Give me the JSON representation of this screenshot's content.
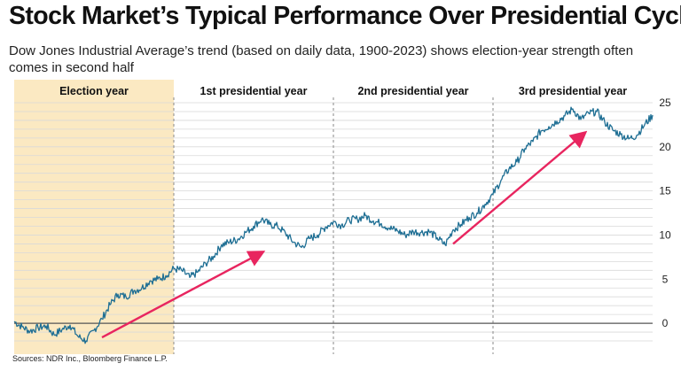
{
  "title": "Stock Market’s Typical Performance Over Presidential Cycles",
  "subtitle": "Dow Jones Industrial Average’s trend (based on daily data, 1900-2023) shows election-year strength often comes in second half",
  "source": "Sources: NDR Inc., Bloomberg Finance L.P.",
  "colors": {
    "line": "#1f6f94",
    "arrow": "#e8255f",
    "election_shade": "#fbe9c2",
    "grid": "#d9d9d9",
    "zero_line": "#555555"
  },
  "chart_data": {
    "type": "line",
    "title": "Stock Market’s Typical Performance Over Presidential Cycles",
    "xlabel": "",
    "ylabel": "",
    "ylim": [
      -2.5,
      25
    ],
    "y_ticks": [
      0,
      5,
      10,
      15,
      20,
      25
    ],
    "grid": true,
    "periods": [
      "Election year",
      "1st presidential year",
      "2nd presidential year",
      "3rd presidential year"
    ],
    "shaded_period": "Election year",
    "x_unit": "years into cycle",
    "series": [
      {
        "values": [
          [
            0.0,
            0.2
          ],
          [
            0.05,
            -0.4
          ],
          [
            0.1,
            -0.9
          ],
          [
            0.15,
            -0.5
          ],
          [
            0.2,
            -0.3
          ],
          [
            0.25,
            -1.3
          ],
          [
            0.3,
            -0.7
          ],
          [
            0.35,
            -0.2
          ],
          [
            0.4,
            -1.5
          ],
          [
            0.45,
            -2.0
          ],
          [
            0.5,
            -0.8
          ],
          [
            0.55,
            0.5
          ],
          [
            0.6,
            2.1
          ],
          [
            0.65,
            3.3
          ],
          [
            0.7,
            3.0
          ],
          [
            0.75,
            3.7
          ],
          [
            0.8,
            4.0
          ],
          [
            0.85,
            4.8
          ],
          [
            0.9,
            5.0
          ],
          [
            0.95,
            5.4
          ],
          [
            1.0,
            6.2
          ],
          [
            1.05,
            6.0
          ],
          [
            1.1,
            5.2
          ],
          [
            1.15,
            5.8
          ],
          [
            1.2,
            6.8
          ],
          [
            1.25,
            7.6
          ],
          [
            1.3,
            8.9
          ],
          [
            1.35,
            9.2
          ],
          [
            1.4,
            9.5
          ],
          [
            1.45,
            10.3
          ],
          [
            1.5,
            11.0
          ],
          [
            1.55,
            11.8
          ],
          [
            1.6,
            11.2
          ],
          [
            1.65,
            11.0
          ],
          [
            1.7,
            10.2
          ],
          [
            1.75,
            9.2
          ],
          [
            1.8,
            8.6
          ],
          [
            1.85,
            9.6
          ],
          [
            1.9,
            10.0
          ],
          [
            1.95,
            10.9
          ],
          [
            2.0,
            11.5
          ],
          [
            2.05,
            11.1
          ],
          [
            2.1,
            11.7
          ],
          [
            2.15,
            11.8
          ],
          [
            2.2,
            12.2
          ],
          [
            2.25,
            11.6
          ],
          [
            2.3,
            11.3
          ],
          [
            2.35,
            10.8
          ],
          [
            2.4,
            10.5
          ],
          [
            2.45,
            10.0
          ],
          [
            2.5,
            10.4
          ],
          [
            2.55,
            10.3
          ],
          [
            2.6,
            10.4
          ],
          [
            2.65,
            9.7
          ],
          [
            2.7,
            8.9
          ],
          [
            2.75,
            10.6
          ],
          [
            2.8,
            11.2
          ],
          [
            2.85,
            12.0
          ],
          [
            2.9,
            12.5
          ],
          [
            2.95,
            13.5
          ],
          [
            3.0,
            14.6
          ],
          [
            3.05,
            16.2
          ],
          [
            3.1,
            17.5
          ],
          [
            3.15,
            18.3
          ],
          [
            3.2,
            19.8
          ],
          [
            3.25,
            20.6
          ],
          [
            3.3,
            21.8
          ],
          [
            3.35,
            22.3
          ],
          [
            3.4,
            22.9
          ],
          [
            3.45,
            23.5
          ],
          [
            3.5,
            24.3
          ],
          [
            3.55,
            23.1
          ],
          [
            3.6,
            23.8
          ],
          [
            3.65,
            24.0
          ],
          [
            3.7,
            22.8
          ],
          [
            3.75,
            21.9
          ],
          [
            3.8,
            21.4
          ],
          [
            3.85,
            20.9
          ],
          [
            3.9,
            21.3
          ],
          [
            3.95,
            22.5
          ],
          [
            4.0,
            23.6
          ]
        ]
      }
    ],
    "annotations": [
      {
        "type": "arrow",
        "from": [
          0.55,
          -1.6
        ],
        "to": [
          1.55,
          8.0
        ]
      },
      {
        "type": "arrow",
        "from": [
          2.75,
          9.0
        ],
        "to": [
          3.57,
          21.5
        ]
      }
    ]
  }
}
